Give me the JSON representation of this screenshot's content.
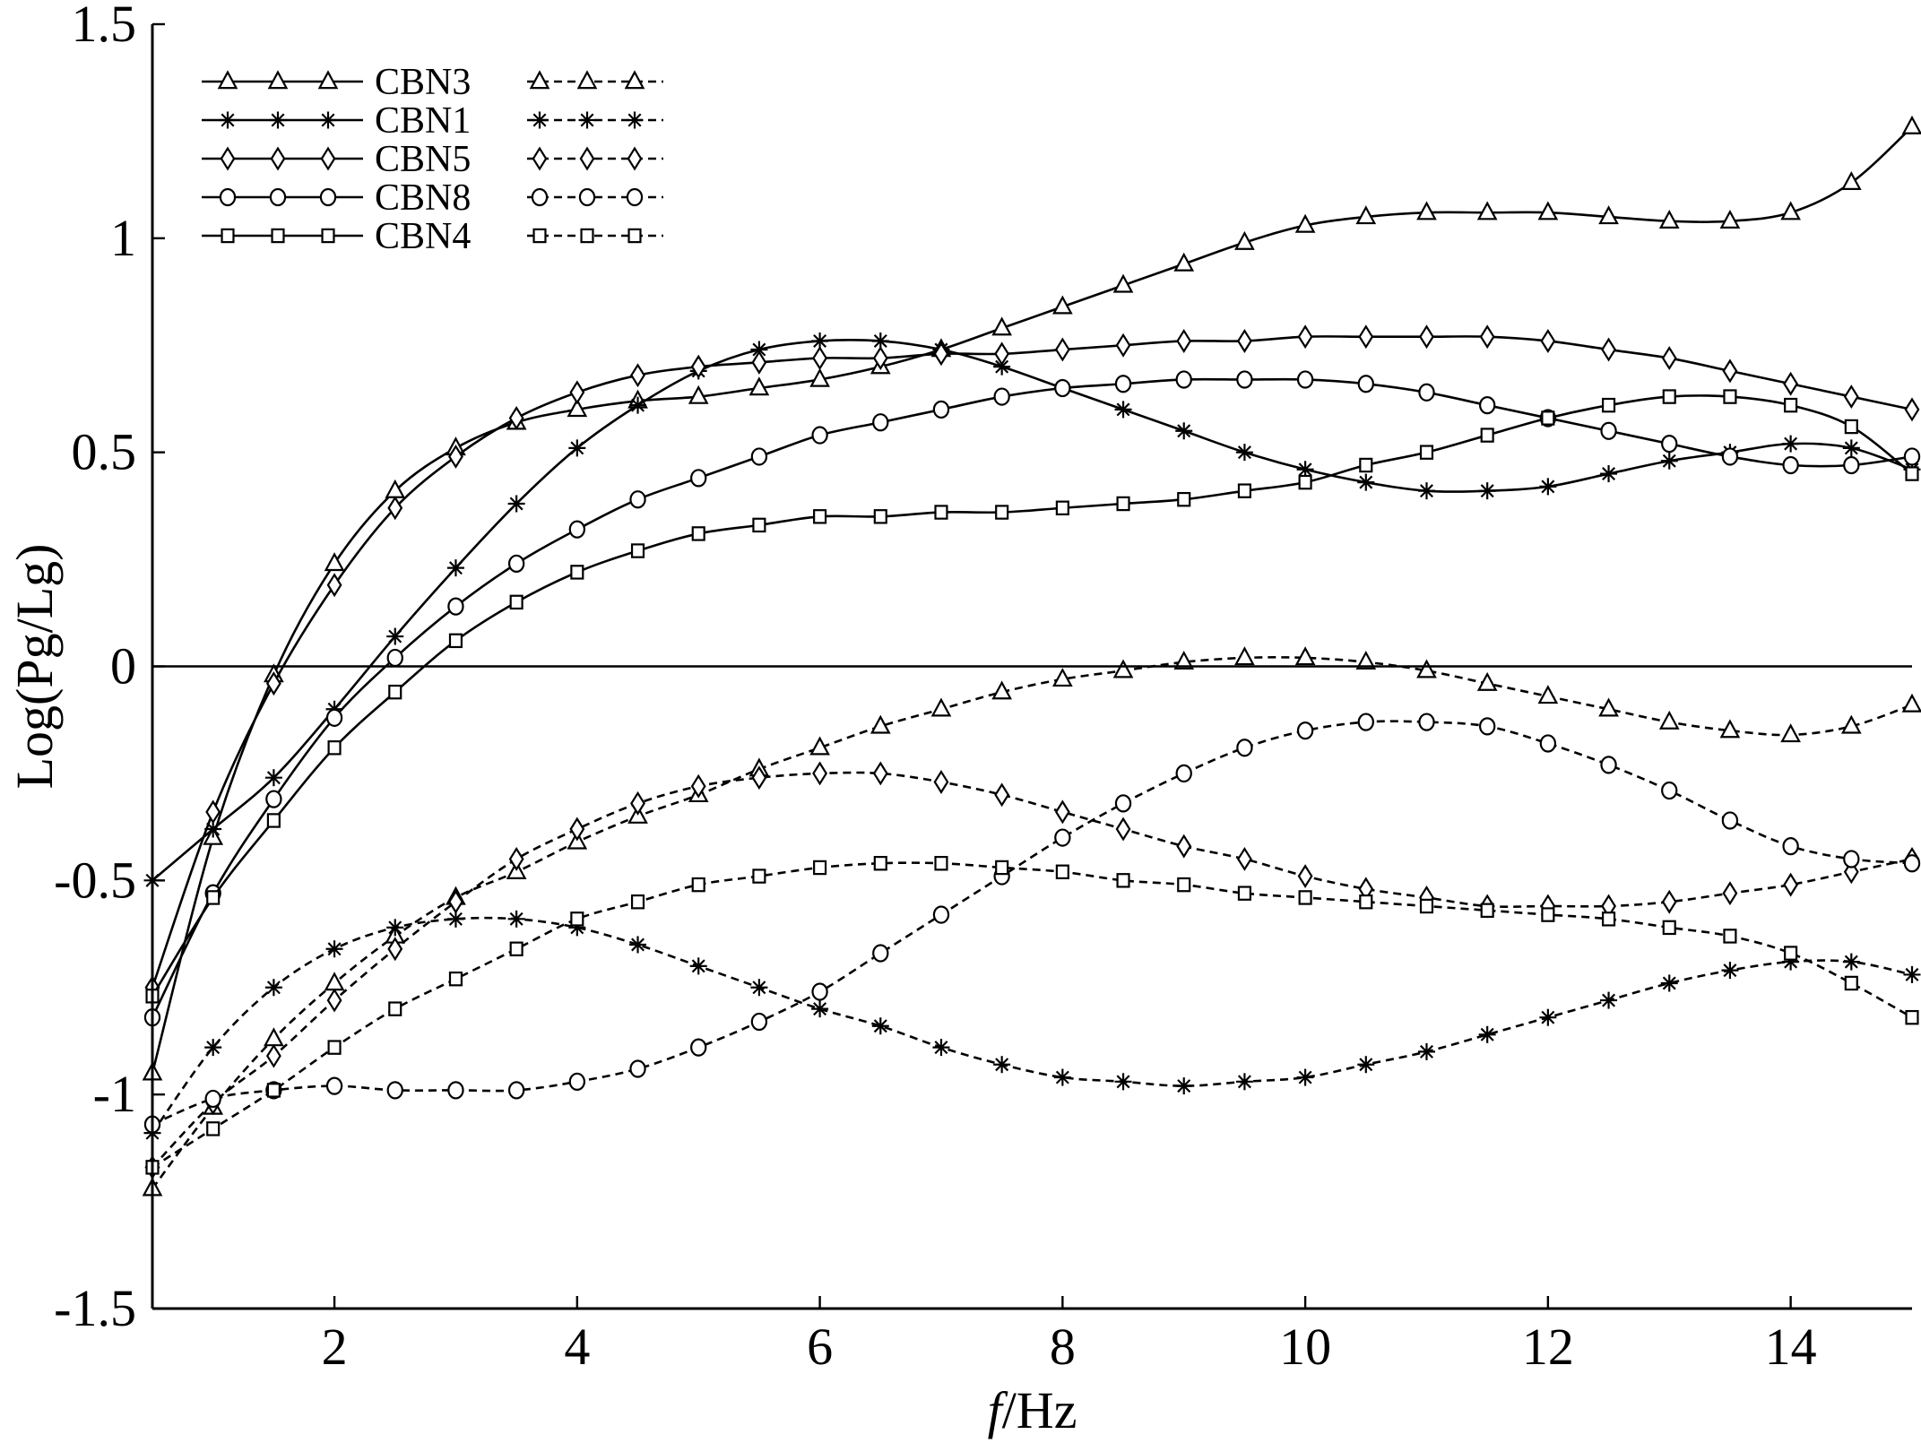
{
  "chart_data": {
    "type": "line",
    "xlabel_italic": "f",
    "xlabel_rest": "/Hz",
    "ylabel": "Log(Pg/Lg)",
    "xlim": [
      0.5,
      15
    ],
    "ylim": [
      -1.5,
      1.5
    ],
    "xticks": [
      2,
      4,
      6,
      8,
      10,
      12,
      14
    ],
    "yticks": [
      -1.5,
      -1,
      -0.5,
      0,
      0.5,
      1,
      1.5
    ],
    "ytick_labels": [
      "-1.5",
      "-1",
      "-0.5",
      "0",
      "0.5",
      "1",
      "1.5"
    ],
    "reference_line_y": 0,
    "grid": false,
    "legend_position": "top-left",
    "x": [
      0.5,
      1,
      1.5,
      2,
      2.5,
      3,
      3.5,
      4,
      4.5,
      5,
      5.5,
      6,
      6.5,
      7,
      7.5,
      8,
      8.5,
      9,
      9.5,
      10,
      10.5,
      11,
      11.5,
      12,
      12.5,
      13,
      13.5,
      14,
      14.5,
      15
    ],
    "series": [
      {
        "name": "CBN3",
        "marker": "triangle",
        "style": "solid",
        "values": [
          -0.95,
          -0.4,
          -0.02,
          0.24,
          0.41,
          0.51,
          0.57,
          0.6,
          0.62,
          0.63,
          0.65,
          0.67,
          0.7,
          0.74,
          0.79,
          0.84,
          0.89,
          0.94,
          0.99,
          1.03,
          1.05,
          1.06,
          1.06,
          1.06,
          1.05,
          1.04,
          1.04,
          1.06,
          1.13,
          1.26
        ]
      },
      {
        "name": "CBN1",
        "marker": "star",
        "style": "solid",
        "values": [
          -0.5,
          -0.38,
          -0.26,
          -0.1,
          0.07,
          0.23,
          0.38,
          0.51,
          0.61,
          0.69,
          0.74,
          0.76,
          0.76,
          0.74,
          0.7,
          0.65,
          0.6,
          0.55,
          0.5,
          0.46,
          0.43,
          0.41,
          0.41,
          0.42,
          0.45,
          0.48,
          0.5,
          0.52,
          0.51,
          0.46
        ]
      },
      {
        "name": "CBN5",
        "marker": "diamond",
        "style": "solid",
        "values": [
          -0.75,
          -0.34,
          -0.04,
          0.19,
          0.37,
          0.49,
          0.58,
          0.64,
          0.68,
          0.7,
          0.71,
          0.72,
          0.72,
          0.73,
          0.73,
          0.74,
          0.75,
          0.76,
          0.76,
          0.77,
          0.77,
          0.77,
          0.77,
          0.76,
          0.74,
          0.72,
          0.69,
          0.66,
          0.63,
          0.6
        ]
      },
      {
        "name": "CBN8",
        "marker": "circle",
        "style": "solid",
        "values": [
          -0.82,
          -0.53,
          -0.31,
          -0.12,
          0.02,
          0.14,
          0.24,
          0.32,
          0.39,
          0.44,
          0.49,
          0.54,
          0.57,
          0.6,
          0.63,
          0.65,
          0.66,
          0.67,
          0.67,
          0.67,
          0.66,
          0.64,
          0.61,
          0.58,
          0.55,
          0.52,
          0.49,
          0.47,
          0.47,
          0.49
        ]
      },
      {
        "name": "CBN4",
        "marker": "square",
        "style": "solid",
        "values": [
          -0.77,
          -0.54,
          -0.36,
          -0.19,
          -0.06,
          0.06,
          0.15,
          0.22,
          0.27,
          0.31,
          0.33,
          0.35,
          0.35,
          0.36,
          0.36,
          0.37,
          0.38,
          0.39,
          0.41,
          0.43,
          0.47,
          0.5,
          0.54,
          0.58,
          0.61,
          0.63,
          0.63,
          0.61,
          0.56,
          0.45
        ]
      },
      {
        "name": "CBN3",
        "marker": "triangle",
        "style": "dashed",
        "values": [
          -1.22,
          -1.03,
          -0.87,
          -0.74,
          -0.63,
          -0.54,
          -0.48,
          -0.41,
          -0.35,
          -0.3,
          -0.24,
          -0.19,
          -0.14,
          -0.1,
          -0.06,
          -0.03,
          -0.01,
          0.01,
          0.02,
          0.02,
          0.01,
          -0.01,
          -0.04,
          -0.07,
          -0.1,
          -0.13,
          -0.15,
          -0.16,
          -0.14,
          -0.09
        ]
      },
      {
        "name": "CBN1",
        "marker": "star",
        "style": "dashed",
        "values": [
          -1.09,
          -0.89,
          -0.75,
          -0.66,
          -0.61,
          -0.59,
          -0.59,
          -0.61,
          -0.65,
          -0.7,
          -0.75,
          -0.8,
          -0.84,
          -0.89,
          -0.93,
          -0.96,
          -0.97,
          -0.98,
          -0.97,
          -0.96,
          -0.93,
          -0.9,
          -0.86,
          -0.82,
          -0.78,
          -0.74,
          -0.71,
          -0.69,
          -0.69,
          -0.72
        ]
      },
      {
        "name": "CBN5",
        "marker": "diamond",
        "style": "dashed",
        "values": [
          -1.17,
          -1.02,
          -0.91,
          -0.78,
          -0.66,
          -0.55,
          -0.45,
          -0.38,
          -0.32,
          -0.28,
          -0.26,
          -0.25,
          -0.25,
          -0.27,
          -0.3,
          -0.34,
          -0.38,
          -0.42,
          -0.45,
          -0.49,
          -0.52,
          -0.54,
          -0.56,
          -0.56,
          -0.56,
          -0.55,
          -0.53,
          -0.51,
          -0.48,
          -0.45
        ]
      },
      {
        "name": "CBN8",
        "marker": "circle",
        "style": "dashed",
        "values": [
          -1.07,
          -1.01,
          -0.99,
          -0.98,
          -0.99,
          -0.99,
          -0.99,
          -0.97,
          -0.94,
          -0.89,
          -0.83,
          -0.76,
          -0.67,
          -0.58,
          -0.49,
          -0.4,
          -0.32,
          -0.25,
          -0.19,
          -0.15,
          -0.13,
          -0.13,
          -0.14,
          -0.18,
          -0.23,
          -0.29,
          -0.36,
          -0.42,
          -0.45,
          -0.46
        ]
      },
      {
        "name": "CBN4",
        "marker": "square",
        "style": "dashed",
        "values": [
          -1.17,
          -1.08,
          -0.99,
          -0.89,
          -0.8,
          -0.73,
          -0.66,
          -0.59,
          -0.55,
          -0.51,
          -0.49,
          -0.47,
          -0.46,
          -0.46,
          -0.47,
          -0.48,
          -0.5,
          -0.51,
          -0.53,
          -0.54,
          -0.55,
          -0.56,
          -0.57,
          -0.58,
          -0.59,
          -0.61,
          -0.63,
          -0.67,
          -0.74,
          -0.82
        ]
      }
    ]
  }
}
